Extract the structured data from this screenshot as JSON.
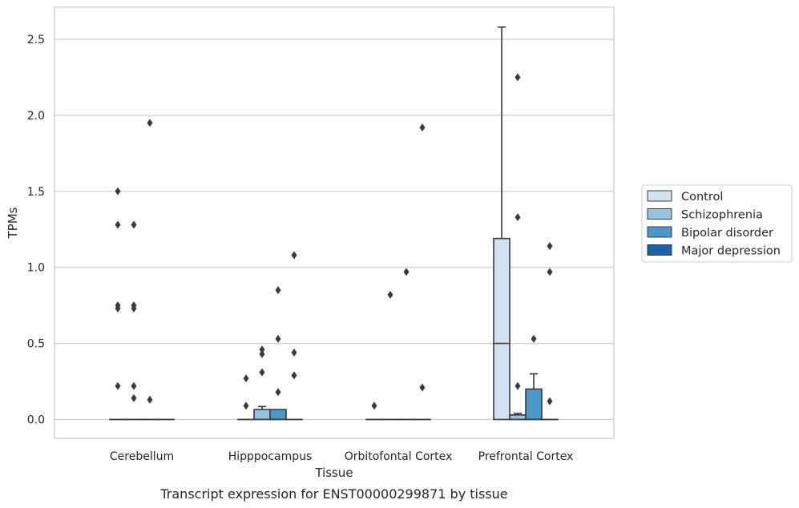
{
  "chart_data": {
    "type": "box",
    "title": "",
    "caption": "Transcript expression for ENST00000299871 by tissue",
    "xlabel": "Tissue",
    "ylabel": "TPMs",
    "ylim": [
      -0.13,
      2.72
    ],
    "yticks": [
      0.0,
      0.5,
      1.0,
      1.5,
      2.0,
      2.5
    ],
    "ytick_labels": [
      "0.0",
      "0.5",
      "1.0",
      "1.5",
      "2.0",
      "2.5"
    ],
    "grid": "horizontal",
    "legend_position": "right",
    "categories": [
      "Cerebellum",
      "Hipppocampus",
      "Orbitofontal Cortex",
      "Prefrontal Cortex"
    ],
    "series": [
      {
        "name": "Control",
        "color": "#d0e1f2",
        "boxes": [
          {
            "q1": 0,
            "median": 0,
            "q3": 0,
            "whisker_low": 0,
            "whisker_high": 0,
            "outliers": [
              1.5,
              1.28,
              0.75,
              0.73,
              0.22
            ]
          },
          {
            "q1": 0,
            "median": 0,
            "q3": 0,
            "whisker_low": 0,
            "whisker_high": 0,
            "outliers": [
              0.27,
              0.09
            ]
          },
          {
            "q1": 0,
            "median": 0,
            "q3": 0,
            "whisker_low": 0,
            "whisker_high": 0,
            "outliers": [
              0.09
            ]
          },
          {
            "q1": 0,
            "median": 0.5,
            "q3": 1.19,
            "whisker_low": 0,
            "whisker_high": 2.58,
            "outliers": []
          }
        ]
      },
      {
        "name": "Schizophrenia",
        "color": "#94c4df",
        "boxes": [
          {
            "q1": 0,
            "median": 0,
            "q3": 0,
            "whisker_low": 0,
            "whisker_high": 0,
            "outliers": [
              1.28,
              0.75,
              0.73,
              0.22,
              0.14
            ]
          },
          {
            "q1": 0,
            "median": 0,
            "q3": 0.065,
            "whisker_low": 0,
            "whisker_high": 0.085,
            "outliers": [
              0.46,
              0.43,
              0.31
            ]
          },
          {
            "q1": 0,
            "median": 0,
            "q3": 0,
            "whisker_low": 0,
            "whisker_high": 0,
            "outliers": [
              0.82
            ]
          },
          {
            "q1": 0,
            "median": 0,
            "q3": 0.03,
            "whisker_low": 0,
            "whisker_high": 0.04,
            "outliers": [
              2.25,
              1.33,
              0.22
            ]
          }
        ]
      },
      {
        "name": "Bipolar disorder",
        "color": "#4a98c9",
        "boxes": [
          {
            "q1": 0,
            "median": 0,
            "q3": 0,
            "whisker_low": 0,
            "whisker_high": 0,
            "outliers": [
              1.95,
              0.13
            ]
          },
          {
            "q1": 0,
            "median": 0,
            "q3": 0.065,
            "whisker_low": 0,
            "whisker_high": 0.065,
            "outliers": [
              0.85,
              0.53,
              0.18
            ]
          },
          {
            "q1": 0,
            "median": 0,
            "q3": 0,
            "whisker_low": 0,
            "whisker_high": 0,
            "outliers": [
              0.97
            ]
          },
          {
            "q1": 0,
            "median": 0,
            "q3": 0.2,
            "whisker_low": 0,
            "whisker_high": 0.3,
            "outliers": [
              0.53
            ]
          }
        ]
      },
      {
        "name": "Major depression",
        "color": "#1764ab",
        "boxes": [
          {
            "q1": 0,
            "median": 0,
            "q3": 0,
            "whisker_low": 0,
            "whisker_high": 0,
            "outliers": []
          },
          {
            "q1": 0,
            "median": 0,
            "q3": 0,
            "whisker_low": 0,
            "whisker_high": 0,
            "outliers": [
              1.08,
              0.44,
              0.29
            ]
          },
          {
            "q1": 0,
            "median": 0,
            "q3": 0,
            "whisker_low": 0,
            "whisker_high": 0,
            "outliers": [
              1.92,
              0.21
            ]
          },
          {
            "q1": 0,
            "median": 0,
            "q3": 0,
            "whisker_low": 0,
            "whisker_high": 0,
            "outliers": [
              1.14,
              0.97,
              0.12
            ]
          }
        ]
      }
    ]
  }
}
